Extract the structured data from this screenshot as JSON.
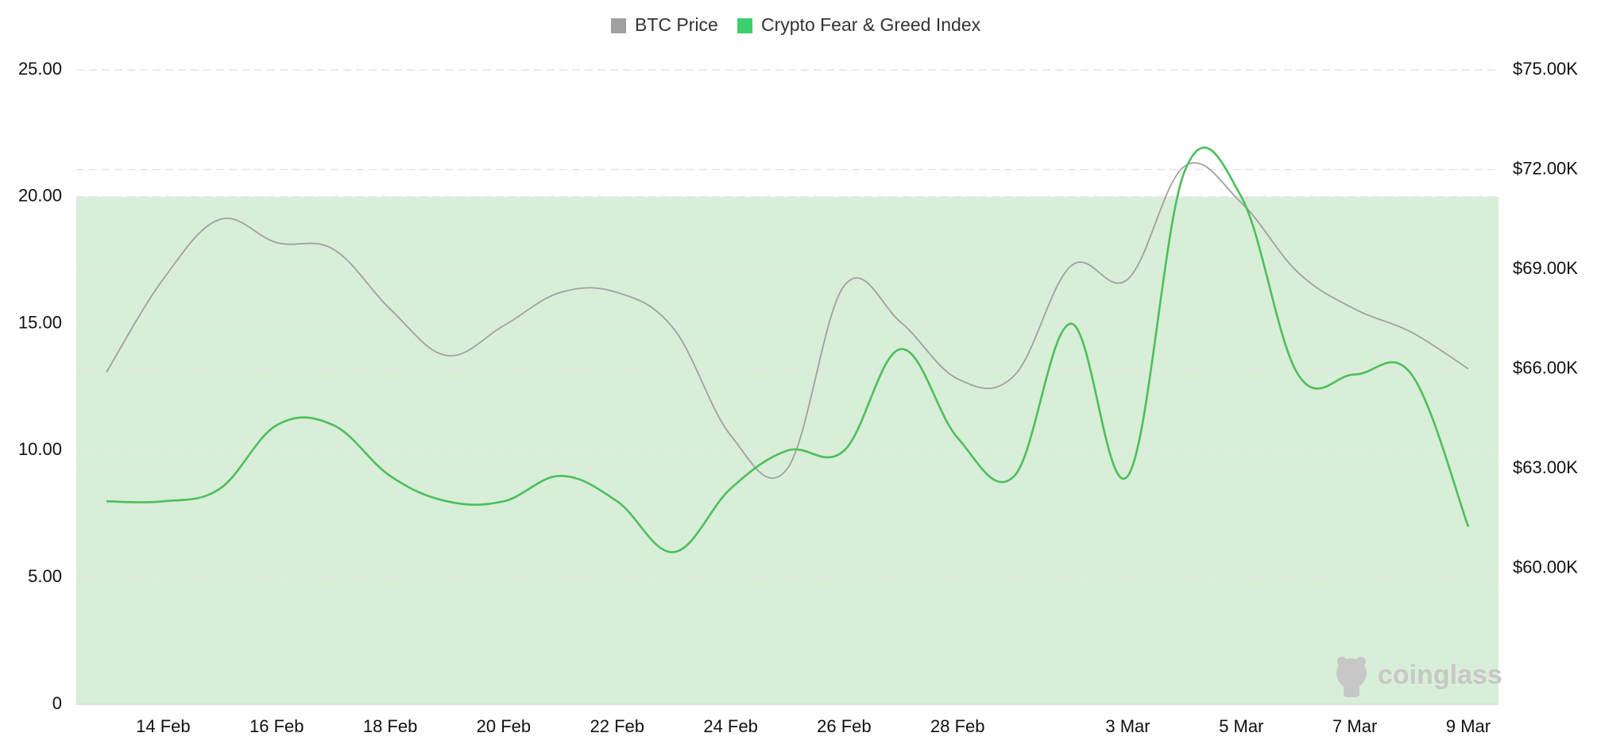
{
  "colors": {
    "btc": "#a0a0a0",
    "fgi": "#4cbf5c",
    "fgi_legend": "#3ccf6e",
    "band": "#d8eed8",
    "grid": "#e6e6e6",
    "text": "#111111",
    "watermark": "#c7c7c7"
  },
  "legend": [
    {
      "label": "BTC Price",
      "key": "btc"
    },
    {
      "label": "Crypto Fear & Greed Index",
      "key": "fgi"
    }
  ],
  "watermark": {
    "text": "coinglass",
    "icon": "coinglass-logo-icon"
  },
  "chart_data": {
    "type": "line",
    "grid": true,
    "legend_position": "top-center",
    "x": [
      "13 Feb",
      "14 Feb",
      "15 Feb",
      "16 Feb",
      "17 Feb",
      "18 Feb",
      "19 Feb",
      "20 Feb",
      "21 Feb",
      "22 Feb",
      "23 Feb",
      "24 Feb",
      "25 Feb",
      "26 Feb",
      "27 Feb",
      "28 Feb",
      "1 Mar",
      "2 Mar",
      "3 Mar",
      "4 Mar",
      "5 Mar",
      "6 Mar",
      "7 Mar",
      "8 Mar",
      "9 Mar"
    ],
    "x_tick_labels": [
      "14 Feb",
      "16 Feb",
      "18 Feb",
      "20 Feb",
      "22 Feb",
      "24 Feb",
      "26 Feb",
      "28 Feb",
      "3 Mar",
      "5 Mar",
      "7 Mar",
      "9 Mar"
    ],
    "y_left": {
      "ticks": [
        "0",
        "5.00",
        "10.00",
        "15.00",
        "20.00",
        "25.00"
      ],
      "range": [
        0,
        25
      ]
    },
    "y_right": {
      "ticks": [
        "$60.00K",
        "$63.00K",
        "$66.00K",
        "$69.00K",
        "$72.00K",
        "$75.00K"
      ],
      "range": [
        55.9,
        75.0
      ],
      "unit": "K USD"
    },
    "band": {
      "from": 0,
      "to": 20
    },
    "series": [
      {
        "name": "BTC Price",
        "axis": "right",
        "values": [
          65.9,
          68.7,
          70.5,
          69.8,
          69.6,
          67.8,
          66.4,
          67.3,
          68.3,
          68.3,
          67.2,
          64.0,
          63.0,
          68.5,
          67.4,
          65.7,
          65.8,
          69.1,
          68.7,
          72.1,
          71.0,
          68.9,
          67.8,
          67.1,
          66.0
        ]
      },
      {
        "name": "Crypto Fear & Greed Index",
        "axis": "left",
        "values": [
          8,
          8,
          8.5,
          11,
          11,
          9,
          8,
          8,
          9,
          8,
          6,
          8.5,
          10,
          10,
          14,
          10.5,
          9,
          15,
          9,
          21,
          20,
          13,
          13,
          13,
          7
        ]
      }
    ]
  }
}
